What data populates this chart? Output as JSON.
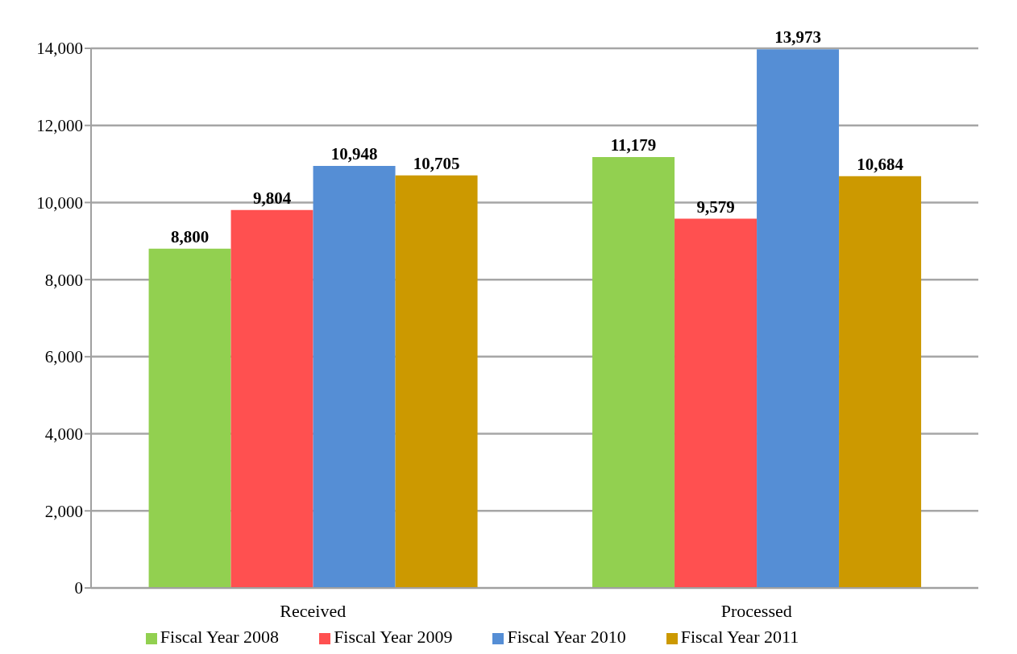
{
  "chart_data": {
    "type": "bar",
    "categories": [
      "Received",
      "Processed"
    ],
    "series": [
      {
        "name": "Fiscal Year 2008",
        "color": "#92d050",
        "values": [
          8800,
          11179
        ],
        "value_labels": [
          "8,800",
          "11,179"
        ]
      },
      {
        "name": "Fiscal Year 2009",
        "color": "#ff5050",
        "values": [
          9804,
          9579
        ],
        "value_labels": [
          "9,804",
          "9,579"
        ]
      },
      {
        "name": "Fiscal Year 2010",
        "color": "#558ed5",
        "values": [
          10948,
          13973
        ],
        "value_labels": [
          "10,948",
          "13,973"
        ]
      },
      {
        "name": "Fiscal Year 2011",
        "color": "#cc9900",
        "values": [
          10705,
          10684
        ],
        "value_labels": [
          "10,705",
          "10,684"
        ]
      }
    ],
    "ylim": [
      0,
      14000
    ],
    "yticks": [
      {
        "value": 0,
        "label": "0"
      },
      {
        "value": 2000,
        "label": "2,000"
      },
      {
        "value": 4000,
        "label": "4,000"
      },
      {
        "value": 6000,
        "label": "6,000"
      },
      {
        "value": 8000,
        "label": "8,000"
      },
      {
        "value": 10000,
        "label": "10,000"
      },
      {
        "value": 12000,
        "label": "12,000"
      },
      {
        "value": 14000,
        "label": "14,000"
      }
    ],
    "grid": "y",
    "legend": "bottom"
  }
}
